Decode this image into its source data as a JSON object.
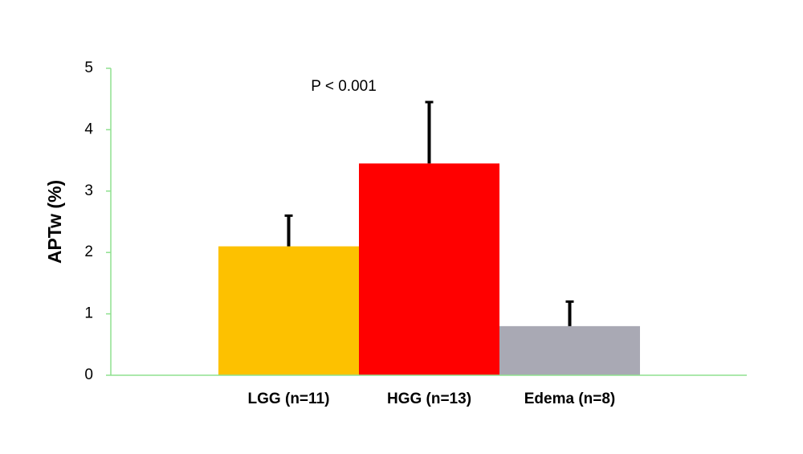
{
  "chart_data": {
    "type": "bar",
    "y_label": "APTw (%)",
    "annotation": "P < 0.001",
    "categories": [
      "LGG (n=11)",
      "HGG (n=13)",
      "Edema (n=8)"
    ],
    "values": [
      2.1,
      3.45,
      0.8
    ],
    "errors": [
      0.5,
      1.0,
      0.4
    ],
    "colors": [
      "#fdc100",
      "#ff0000",
      "#a9a9b4"
    ],
    "ylim": [
      0,
      5
    ],
    "yticks": [
      0,
      1,
      2,
      3,
      4,
      5
    ],
    "grid": false
  }
}
